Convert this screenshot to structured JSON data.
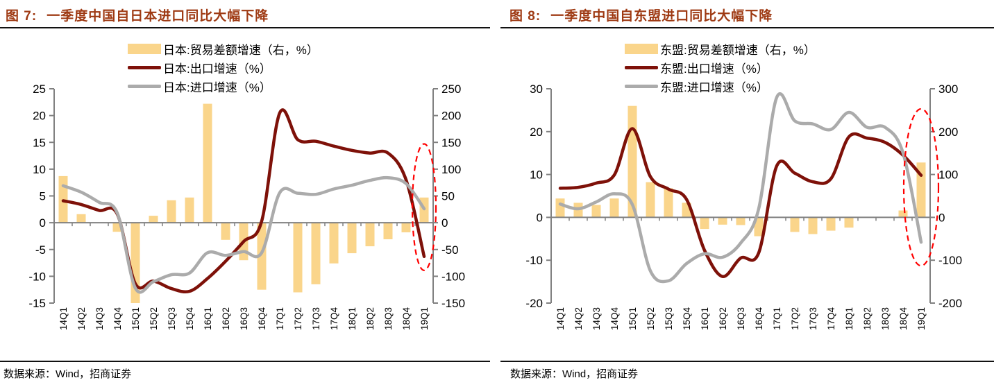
{
  "chart_data": [
    {
      "type": "bar+line combo",
      "title_prefix": "图 7:",
      "title_text": "一季度中国自日本进口同比大幅下降",
      "source": "数据来源：Wind，招商证券",
      "categories": [
        "14Q1",
        "14Q2",
        "14Q3",
        "14Q4",
        "15Q1",
        "15Q2",
        "15Q3",
        "15Q4",
        "16Q1",
        "16Q2",
        "16Q3",
        "16Q4",
        "17Q1",
        "17Q2",
        "17Q3",
        "17Q4",
        "18Q1",
        "18Q2",
        "18Q3",
        "18Q4",
        "19Q1"
      ],
      "left_axis": {
        "min": -15,
        "max": 25,
        "ticks": [
          25,
          20,
          15,
          10,
          5,
          0,
          -5,
          -10,
          -15
        ]
      },
      "right_axis": {
        "min": -150,
        "max": 250,
        "ticks": [
          250,
          200,
          150,
          100,
          50,
          0,
          -50,
          -100,
          -150
        ]
      },
      "legend_position": "top-center",
      "grid": "off",
      "series": [
        {
          "name": "日本:贸易差额增速（右，%）",
          "type": "bar",
          "axis": "right",
          "color": "#FAD58B",
          "values": [
            87,
            16,
            0,
            -17,
            -154,
            13,
            42,
            47,
            222,
            -32,
            -70,
            -125,
            0,
            -130,
            -115,
            -76,
            -57,
            -44,
            -31,
            -18,
            47
          ]
        },
        {
          "name": "日本:出口增速（%）",
          "type": "line",
          "axis": "left",
          "color": "#7E1109",
          "values": [
            4.1,
            3.4,
            2.3,
            1.6,
            -11.4,
            -10.9,
            -12.3,
            -12.8,
            -10.4,
            -7.2,
            -3.5,
            0.3,
            20.5,
            15.5,
            15.2,
            14.3,
            13.5,
            13.0,
            13.0,
            8.0,
            -6.3
          ]
        },
        {
          "name": "日本:进口增速（%）",
          "type": "line",
          "axis": "left",
          "color": "#ABABAB",
          "values": [
            6.9,
            5.7,
            3.8,
            1.8,
            -12.2,
            -11.0,
            -9.7,
            -9.4,
            -5.6,
            -6.1,
            -5.4,
            -5.6,
            5.6,
            5.5,
            5.3,
            6.3,
            7.0,
            7.9,
            8.4,
            7.3,
            2.6
          ]
        }
      ],
      "annotation_highlight": {
        "shape": "dashed-ellipse",
        "color": "#FF0000",
        "category_index": 20,
        "center_left_value": 2.9,
        "radius_left_value": 11.8,
        "radius_x_px": 17
      }
    },
    {
      "type": "bar+line combo",
      "title_prefix": "图 8:",
      "title_text": "一季度中国自东盟进口同比大幅下降",
      "source": "数据来源：Wind，招商证券",
      "categories": [
        "14Q1",
        "14Q2",
        "14Q3",
        "14Q4",
        "15Q1",
        "15Q2",
        "15Q3",
        "15Q4",
        "16Q1",
        "16Q2",
        "16Q3",
        "16Q4",
        "17Q1",
        "17Q2",
        "17Q3",
        "17Q4",
        "18Q1",
        "18Q2",
        "18Q3",
        "18Q4",
        "19Q1"
      ],
      "left_axis": {
        "min": -20,
        "max": 30,
        "ticks": [
          30,
          20,
          10,
          0,
          -10,
          -20
        ]
      },
      "right_axis": {
        "min": -200,
        "max": 300,
        "ticks": [
          300,
          200,
          100,
          0,
          -100,
          -200
        ]
      },
      "legend_position": "top-center",
      "grid": "off",
      "series": [
        {
          "name": "东盟:贸易差额增速（右，%）",
          "type": "bar",
          "axis": "right",
          "color": "#FAD58B",
          "values": [
            44,
            34,
            29,
            44,
            260,
            82,
            68,
            34,
            -27,
            -17,
            -18,
            -44,
            0,
            -34,
            -39,
            -31,
            -24,
            0,
            0,
            16,
            128
          ]
        },
        {
          "name": "东盟:出口增速（%）",
          "type": "line",
          "axis": "left",
          "color": "#7E1109",
          "values": [
            6.8,
            7.0,
            8.0,
            9.9,
            20.7,
            9.5,
            6.6,
            4.2,
            -7.7,
            -13.8,
            -9.5,
            -8.3,
            12.0,
            10.3,
            8.3,
            9.0,
            18.8,
            18.5,
            17.5,
            14.5,
            9.8
          ]
        },
        {
          "name": "东盟:进口增速（%）",
          "type": "line",
          "axis": "left",
          "color": "#ABABAB",
          "values": [
            3.1,
            2.0,
            3.6,
            5.5,
            3.0,
            -12.5,
            -14.8,
            -10.8,
            -8.5,
            -9.3,
            -6.0,
            2.0,
            28.0,
            22.5,
            21.8,
            20.5,
            24.5,
            21.0,
            21.0,
            15.0,
            -5.8
          ]
        }
      ],
      "annotation_highlight": {
        "shape": "dashed-ellipse",
        "color": "#FF0000",
        "category_index": 20,
        "center_left_value": 7.0,
        "radius_left_value": 18.3,
        "radius_x_px": 25
      }
    }
  ],
  "style_colors": {
    "title": "#9E3912",
    "axis": "#808080",
    "text": "#000000",
    "rule": "#111111"
  }
}
